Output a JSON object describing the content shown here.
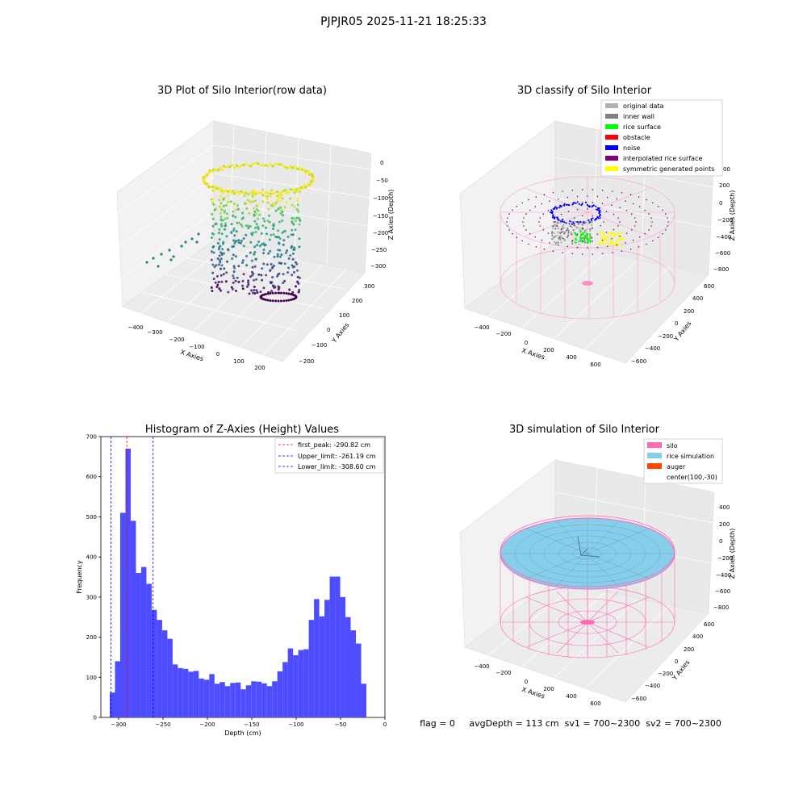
{
  "figure": {
    "suptitle": "PJPJR05 2025-11-21 18:25:33",
    "footer": "flag = 0     avgDepth = 113 cm  sv1 = 700~2300  sv2 = 700~2300"
  },
  "colors": {
    "hist_bar": "#4d4dff",
    "first_peak_line": "#ff0000",
    "limit_line": "#0000ff",
    "silo": "#ff69b4",
    "rice_simulation": "#87ceeb",
    "auger": "#ff4500",
    "original_data": "#b0b0b0",
    "inner_wall": "#808080",
    "rice_surface": "#00ff00",
    "obstacle": "#ff0000",
    "noise": "#0000ff",
    "interpolated_rice_surface": "#800080",
    "symmetric_generated_points": "#ffff00"
  },
  "chart_data": [
    {
      "type": "scatter3d",
      "title": "3D Plot of Silo Interior(row data)",
      "xlabel": "X Axies",
      "ylabel": "Y Axies",
      "zlabel": "Z Axies (Depth)",
      "x_ticks": [
        "−400",
        "−300",
        "−200",
        "−100",
        "0",
        "100",
        "200"
      ],
      "y_ticks": [
        "−200",
        "−100",
        "0",
        "100",
        "200",
        "300"
      ],
      "z_ticks": [
        "0",
        "−50",
        "−100",
        "−150",
        "−200",
        "−250",
        "−300"
      ],
      "colormap": "viridis",
      "grid": true
    },
    {
      "type": "scatter3d",
      "title": "3D classify of Silo Interior",
      "xlabel": "X Axies",
      "ylabel": "Y Axies",
      "zlabel": "Z Axies (Depth)",
      "x_ticks": [
        "−400",
        "−200",
        "0",
        "200",
        "400",
        "600"
      ],
      "y_ticks": [
        "−600",
        "−400",
        "−200",
        "0",
        "200",
        "400",
        "600"
      ],
      "z_ticks": [
        "200",
        "0",
        "−200",
        "−400",
        "−600",
        "−800"
      ],
      "z_top_partial": "00",
      "legend": [
        "original data",
        "inner wall",
        "rice surface",
        "obstacle",
        "noise",
        "interpolated rice surface",
        "symmetric generated points"
      ],
      "legend_position": "top-right",
      "grid": true
    },
    {
      "type": "bar",
      "title": "Histogram of Z-Axies (Height) Values",
      "xlabel": "Depth (cm)",
      "ylabel": "Frequency",
      "xlim": [
        -320,
        0
      ],
      "ylim": [
        0,
        700
      ],
      "x_ticks": [
        "−300",
        "−250",
        "−200",
        "−150",
        "−100",
        "−50",
        "0"
      ],
      "y_ticks": [
        "0",
        "100",
        "200",
        "300",
        "400",
        "500",
        "600",
        "700"
      ],
      "bin_start": -310,
      "bin_width": 5.9,
      "values": [
        62,
        140,
        510,
        670,
        490,
        360,
        375,
        333,
        268,
        243,
        217,
        196,
        132,
        123,
        121,
        114,
        116,
        97,
        94,
        108,
        84,
        88,
        78,
        86,
        87,
        70,
        80,
        90,
        89,
        85,
        78,
        90,
        115,
        138,
        172,
        155,
        168,
        170,
        243,
        295,
        252,
        293,
        351,
        351,
        300,
        250,
        217,
        184,
        84
      ],
      "vlines": [
        {
          "label": "first_peak: -290.82 cm",
          "x": -290.82,
          "color_key": "first_peak_line"
        },
        {
          "label": "Upper_limit: -261.19 cm",
          "x": -261.19,
          "color_key": "limit_line"
        },
        {
          "label": "Lower_limit: -308.60 cm",
          "x": -308.6,
          "color_key": "limit_line"
        }
      ],
      "legend_position": "top-right",
      "grid": false
    },
    {
      "type": "surface3d",
      "title": "3D simulation of Silo Interior",
      "xlabel": "X Axies",
      "ylabel": "Y Axies",
      "zlabel": "Z Axies (Depth)",
      "x_ticks": [
        "−400",
        "−200",
        "0",
        "200",
        "400",
        "600"
      ],
      "y_ticks": [
        "−600",
        "−400",
        "−200",
        "0",
        "200",
        "400",
        "600"
      ],
      "z_ticks": [
        "400",
        "200",
        "0",
        "−200",
        "−400",
        "−600",
        "−800"
      ],
      "legend": [
        "silo",
        "rice simulation",
        "auger",
        "center(100,-30)"
      ],
      "legend_position": "top-right",
      "grid": true
    }
  ]
}
